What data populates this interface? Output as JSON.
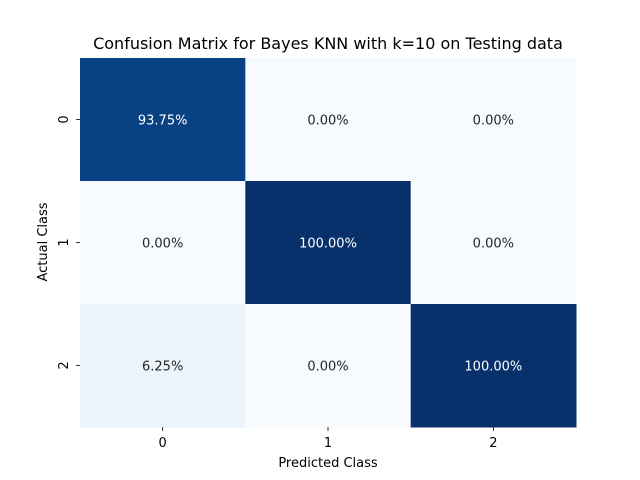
{
  "chart_data": {
    "type": "heatmap",
    "title": "Confusion Matrix for Bayes KNN with k=10 on Testing data",
    "xlabel": "Predicted Class",
    "ylabel": "Actual Class",
    "x_categories": [
      "0",
      "1",
      "2"
    ],
    "y_categories": [
      "0",
      "1",
      "2"
    ],
    "values": [
      [
        93.75,
        0.0,
        0.0
      ],
      [
        0.0,
        100.0,
        0.0
      ],
      [
        6.25,
        0.0,
        100.0
      ]
    ],
    "cell_labels": [
      [
        "93.75%",
        "0.00%",
        "0.00%"
      ],
      [
        "0.00%",
        "100.00%",
        "0.00%"
      ],
      [
        "6.25%",
        "0.00%",
        "100.00%"
      ]
    ],
    "value_range": [
      0,
      100
    ],
    "colormap": "Blues",
    "colorbar": false,
    "grid": false,
    "colors": {
      "low": "#f7fbff",
      "mid_low": "#deebf7",
      "mid": "#6baed6",
      "high": "#08306b",
      "light_text": "#ffffff",
      "dark_text": "#262626"
    }
  }
}
